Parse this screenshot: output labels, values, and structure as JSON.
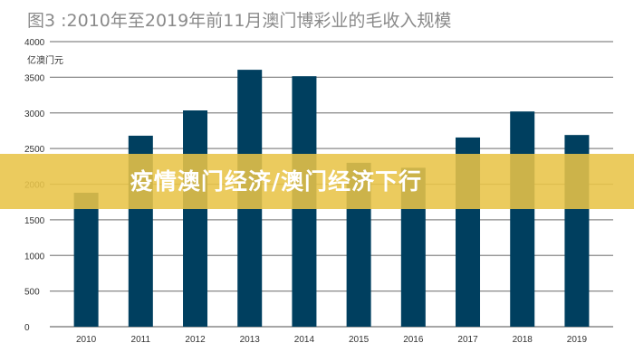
{
  "title": "图3 :2010年至2019年前11月澳门博彩业的毛收入规模",
  "banner": "疫情澳门经济/澳门经济下行",
  "colors": {
    "bar": "#003f5f",
    "grid": "#888888",
    "banner": "#e8c448"
  },
  "chart_data": {
    "type": "bar",
    "title": "图3 :2010年至2019年前11月澳门博彩业的毛收入规模",
    "ylabel": "亿澳门元",
    "xlabel": "",
    "ylim": [
      0,
      4000
    ],
    "yticks": [
      0,
      500,
      1000,
      1500,
      2000,
      2500,
      3000,
      3500,
      4000
    ],
    "grid": true,
    "categories": [
      "2010",
      "2011",
      "2012",
      "2013",
      "2014",
      "2015",
      "2016",
      "2017",
      "2018",
      "2019"
    ],
    "values": [
      1880,
      2680,
      3035,
      3605,
      3515,
      2300,
      2230,
      2655,
      3020,
      2690
    ]
  }
}
